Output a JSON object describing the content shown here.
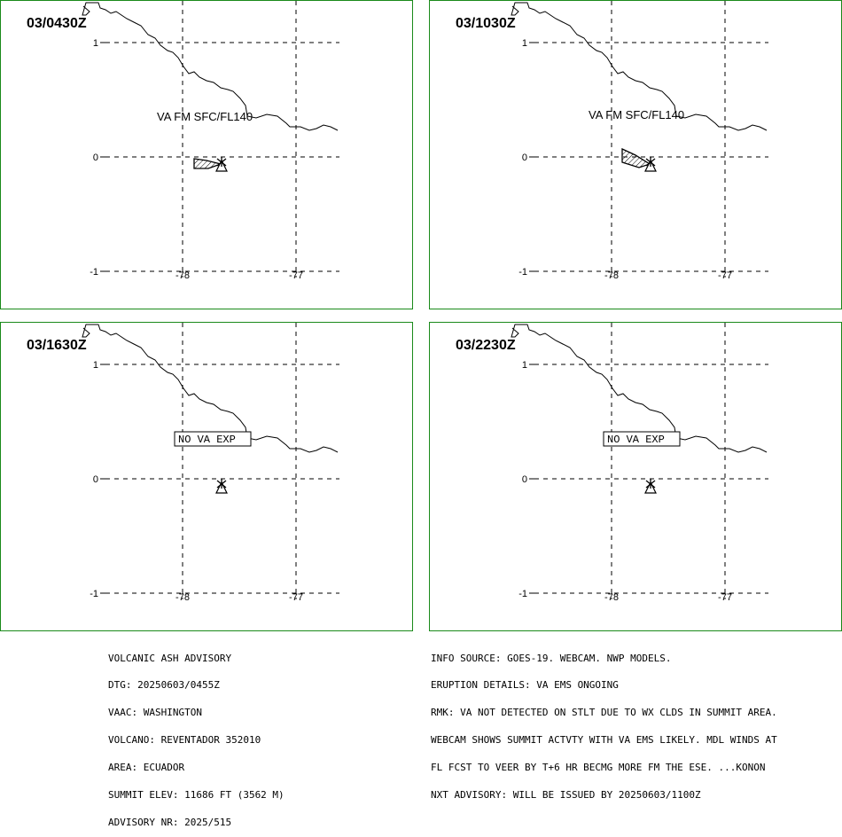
{
  "panels": [
    {
      "time": "03/0430Z",
      "label": "VA FM SFC/FL140",
      "ash": "a",
      "type": "ash"
    },
    {
      "time": "03/1030Z",
      "label": "VA FM SFC/FL140",
      "ash": "b",
      "type": "ash"
    },
    {
      "time": "03/1630Z",
      "label": "NO VA EXP",
      "type": "none"
    },
    {
      "time": "03/2230Z",
      "label": "NO VA EXP",
      "type": "none"
    }
  ],
  "axes": {
    "lat_labels": [
      "1",
      "0",
      "-1"
    ],
    "lon_labels": [
      "-78",
      "-77"
    ]
  },
  "advisory_left": [
    "VOLCANIC ASH ADVISORY",
    "DTG: 20250603/0455Z",
    "VAAC: WASHINGTON",
    "VOLCANO: REVENTADOR 352010",
    "AREA: ECUADOR",
    "SUMMIT ELEV: 11686 FT (3562 M)",
    "ADVISORY NR: 2025/515"
  ],
  "advisory_right": [
    "INFO SOURCE: GOES-19. WEBCAM. NWP MODELS.",
    "ERUPTION DETAILS: VA EMS ONGOING",
    "RMK: VA NOT DETECTED ON STLT DUE TO WX CLDS IN SUMMIT AREA.",
    "WEBCAM SHOWS SUMMIT ACTVTY WITH VA EMS LIKELY. MDL WINDS AT",
    "FL FCST TO VEER BY T+6 HR BECMG MORE FM THE ESE. ...KONON",
    "NXT ADVISORY: WILL BE ISSUED BY 20250603/1100Z"
  ],
  "colors": {
    "frame": "#1a8a1a",
    "ink": "#000000"
  }
}
